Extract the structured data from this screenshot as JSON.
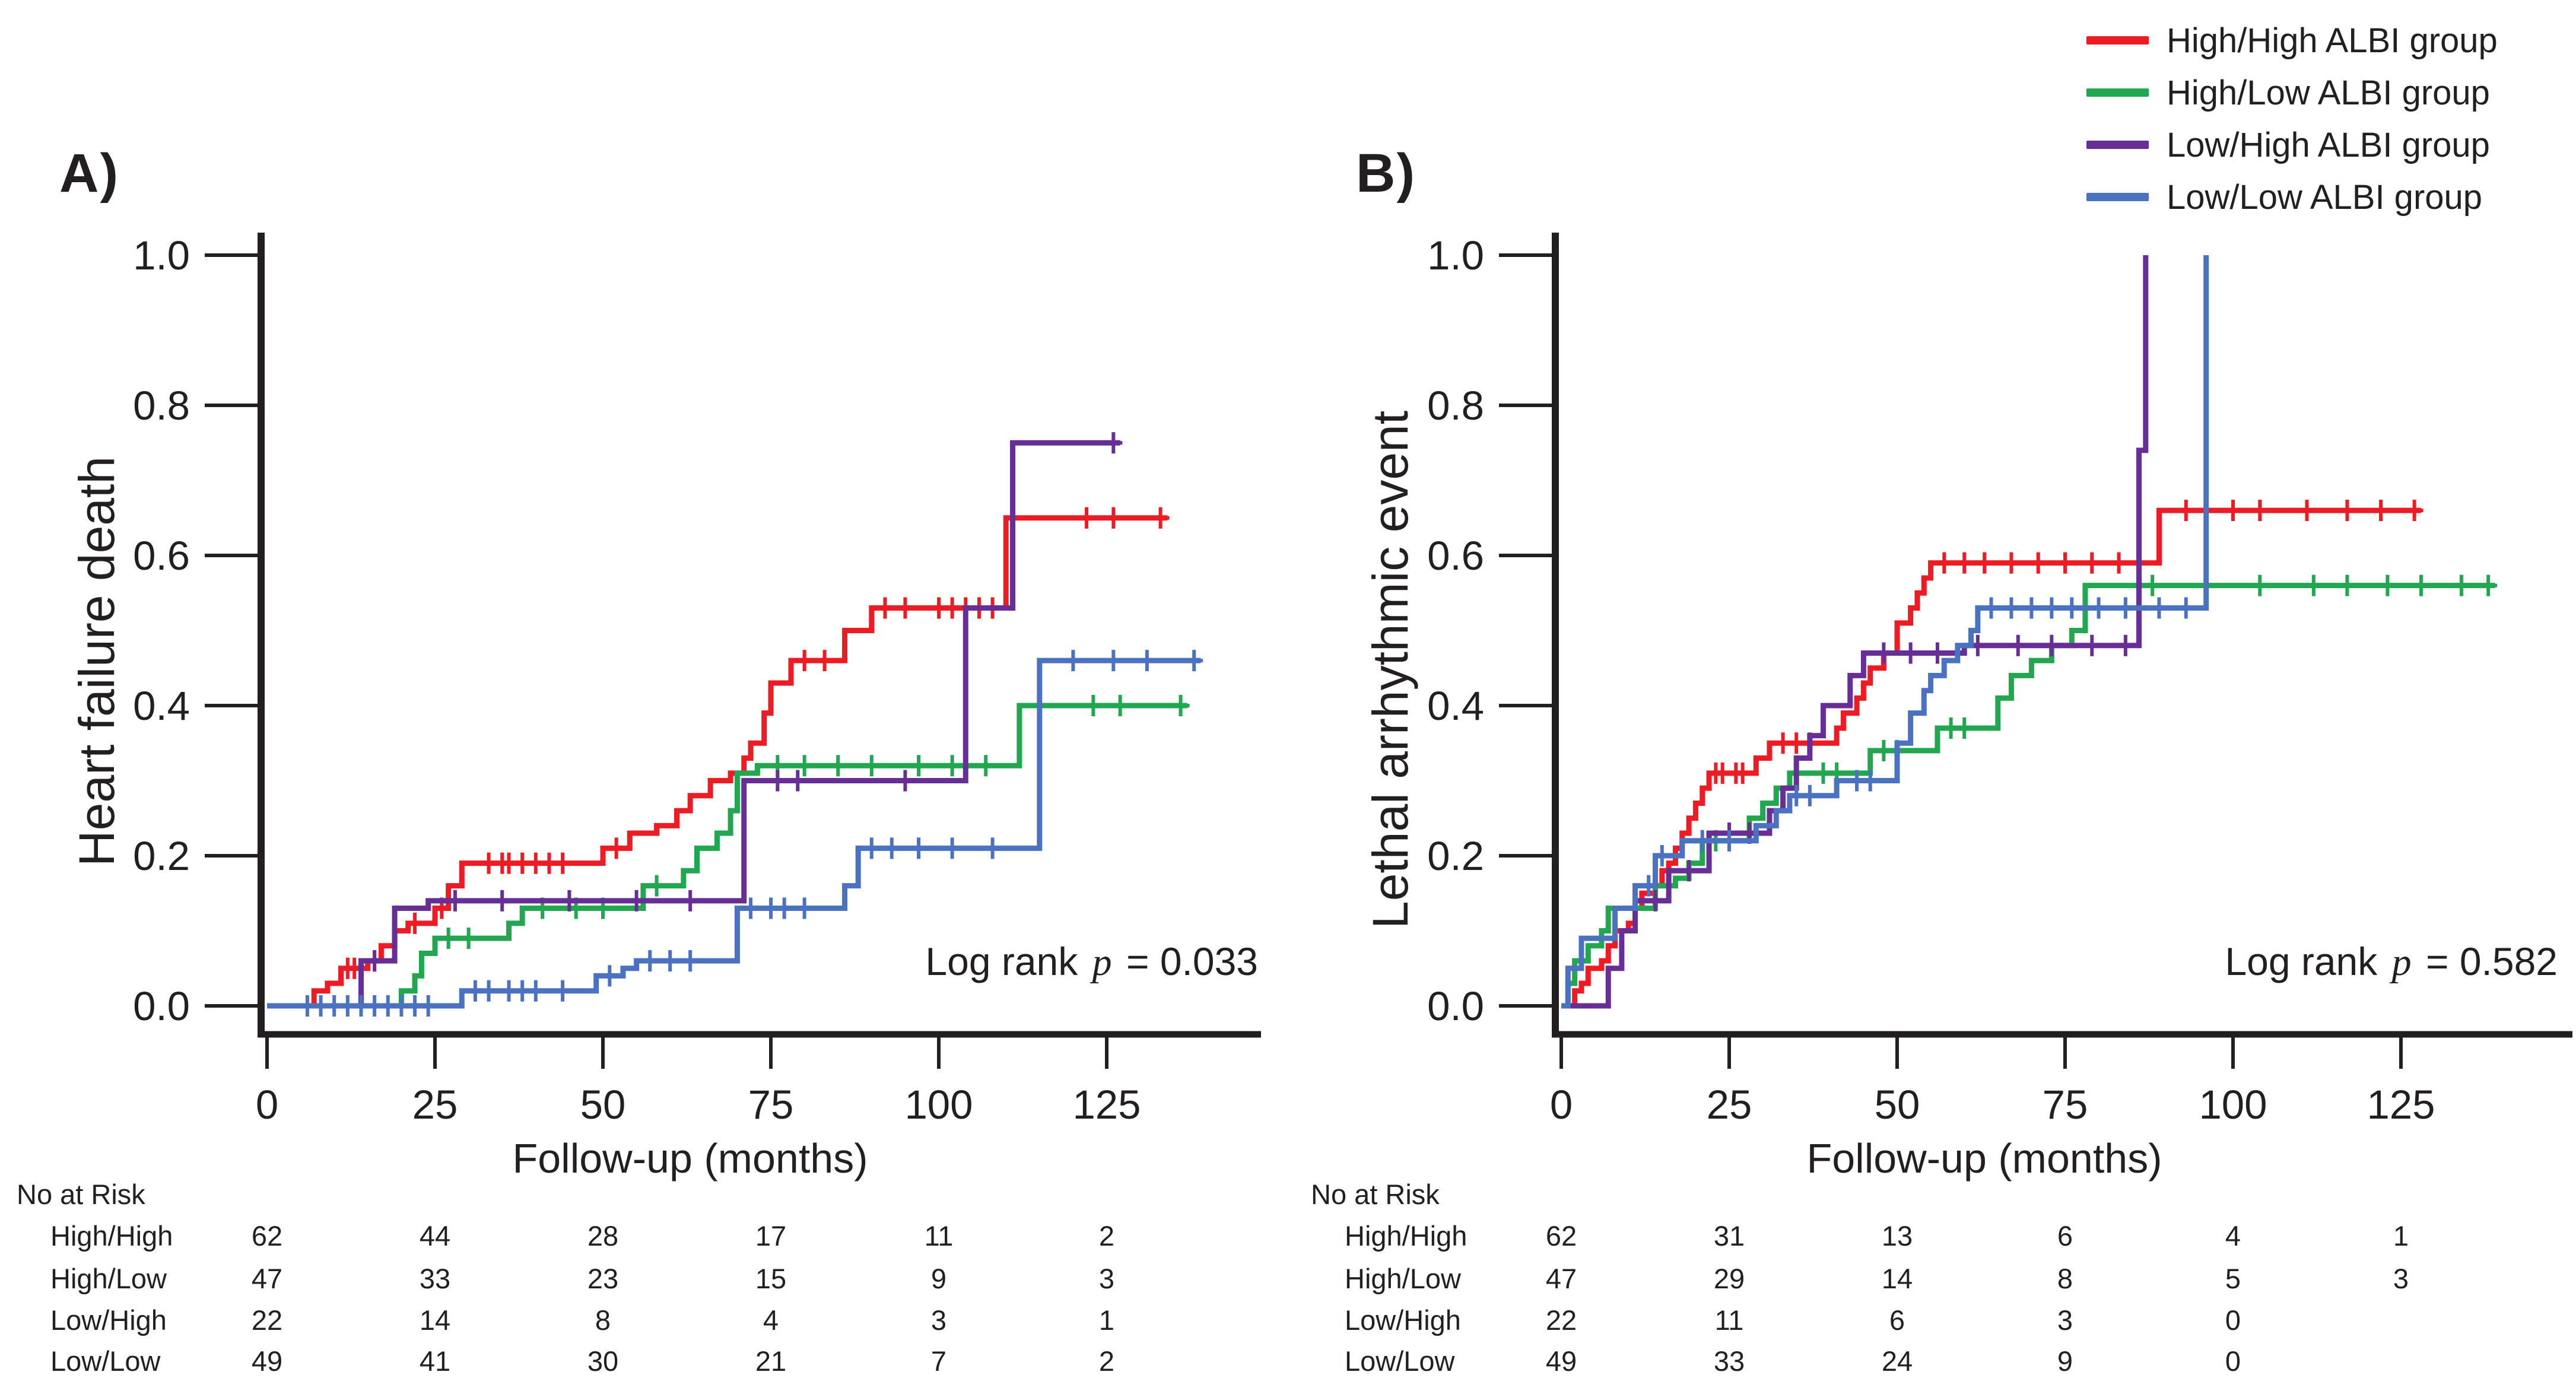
{
  "figure": {
    "legend": {
      "items": [
        {
          "label": "High/High ALBI group",
          "color": "#ed1c24"
        },
        {
          "label": "High/Low ALBI group",
          "color": "#22a650"
        },
        {
          "label": "Low/High ALBI group",
          "color": "#672f96"
        },
        {
          "label": "Low/Low ALBI group",
          "color": "#4a72c0"
        }
      ]
    },
    "text_color": "#231f20"
  },
  "chart_data": [
    {
      "id": "A",
      "type": "line",
      "subtype": "kaplan-meier-cumulative-incidence",
      "panel_label": "A)",
      "ylabel": "Heart failure death",
      "xlabel": "Follow-up (months)",
      "xlim": [
        0,
        148
      ],
      "ylim": [
        0,
        1.0
      ],
      "x_ticks": [
        0,
        25,
        50,
        75,
        100,
        125
      ],
      "y_ticks": [
        "0.0",
        "0.2",
        "0.4",
        "0.6",
        "0.8",
        "1.0"
      ],
      "grid": false,
      "legend_position": "top-right-shared",
      "annotation": {
        "prefix": "Log rank",
        "p": "p",
        "value": "= 0.033"
      },
      "series": [
        {
          "name": "High/High ALBI group",
          "color": "#ed1c24",
          "points": [
            [
              0,
              0
            ],
            [
              7,
              0.02
            ],
            [
              9,
              0.03
            ],
            [
              11,
              0.05
            ],
            [
              15,
              0.06
            ],
            [
              17,
              0.08
            ],
            [
              19,
              0.1
            ],
            [
              21,
              0.11
            ],
            [
              25,
              0.13
            ],
            [
              27,
              0.16
            ],
            [
              29,
              0.19
            ],
            [
              49,
              0.19
            ],
            [
              50,
              0.21
            ],
            [
              54,
              0.23
            ],
            [
              58,
              0.24
            ],
            [
              61,
              0.26
            ],
            [
              63,
              0.28
            ],
            [
              66,
              0.3
            ],
            [
              69,
              0.31
            ],
            [
              71,
              0.33
            ],
            [
              72,
              0.35
            ],
            [
              74,
              0.39
            ],
            [
              75,
              0.43
            ],
            [
              78,
              0.46
            ],
            [
              86,
              0.5
            ],
            [
              90,
              0.53
            ],
            [
              110,
              0.53
            ],
            [
              110,
              0.65
            ],
            [
              134,
              0.65
            ]
          ],
          "censors": [
            12,
            13,
            16,
            22,
            26,
            33,
            35,
            36,
            38,
            40,
            42,
            44,
            52,
            80,
            83,
            92,
            95,
            100,
            102,
            104,
            106,
            108,
            122,
            126,
            133
          ]
        },
        {
          "name": "High/Low ALBI group",
          "color": "#22a650",
          "points": [
            [
              0,
              0
            ],
            [
              20,
              0.02
            ],
            [
              22,
              0.04
            ],
            [
              23,
              0.07
            ],
            [
              25,
              0.09
            ],
            [
              35,
              0.09
            ],
            [
              36,
              0.11
            ],
            [
              38,
              0.13
            ],
            [
              54,
              0.13
            ],
            [
              56,
              0.16
            ],
            [
              62,
              0.18
            ],
            [
              64,
              0.21
            ],
            [
              67,
              0.23
            ],
            [
              69,
              0.26
            ],
            [
              70,
              0.31
            ],
            [
              73,
              0.32
            ],
            [
              112,
              0.32
            ],
            [
              112,
              0.4
            ],
            [
              137,
              0.4
            ]
          ],
          "censors": [
            27,
            30,
            41,
            46,
            50,
            58,
            76,
            80,
            85,
            90,
            97,
            102,
            107,
            115,
            123,
            127,
            136
          ]
        },
        {
          "name": "Low/High ALBI group",
          "color": "#672f96",
          "points": [
            [
              0,
              0
            ],
            [
              14,
              0.06
            ],
            [
              19,
              0.13
            ],
            [
              24,
              0.14
            ],
            [
              70,
              0.14
            ],
            [
              71,
              0.3
            ],
            [
              104,
              0.3
            ],
            [
              104,
              0.53
            ],
            [
              111,
              0.53
            ],
            [
              111,
              0.75
            ],
            [
              127,
              0.75
            ]
          ],
          "censors": [
            16,
            28,
            35,
            45,
            55,
            63,
            76,
            79,
            95,
            126
          ]
        },
        {
          "name": "Low/Low ALBI group",
          "color": "#4a72c0",
          "points": [
            [
              0,
              0
            ],
            [
              29,
              0.02
            ],
            [
              48,
              0.02
            ],
            [
              49,
              0.04
            ],
            [
              53,
              0.05
            ],
            [
              55,
              0.06
            ],
            [
              69,
              0.06
            ],
            [
              70,
              0.13
            ],
            [
              85,
              0.13
            ],
            [
              86,
              0.16
            ],
            [
              88,
              0.21
            ],
            [
              115,
              0.21
            ],
            [
              115,
              0.46
            ],
            [
              139,
              0.46
            ]
          ],
          "censors": [
            6,
            8,
            10,
            12,
            14,
            16,
            18,
            20,
            22,
            24,
            31,
            33,
            36,
            38,
            40,
            44,
            51,
            57,
            60,
            63,
            72,
            75,
            77,
            80,
            90,
            93,
            97,
            102,
            108,
            120,
            126,
            131,
            138
          ]
        }
      ],
      "risk_table": {
        "title": "No at Risk",
        "rows": [
          {
            "label": "High/High",
            "counts": [
              62,
              44,
              28,
              17,
              11,
              2
            ]
          },
          {
            "label": "High/Low",
            "counts": [
              47,
              33,
              23,
              15,
              9,
              3
            ]
          },
          {
            "label": "Low/High",
            "counts": [
              22,
              14,
              8,
              4,
              3,
              1
            ]
          },
          {
            "label": "Low/Low",
            "counts": [
              49,
              41,
              30,
              21,
              7,
              2
            ]
          }
        ]
      }
    },
    {
      "id": "B",
      "type": "line",
      "subtype": "kaplan-meier-cumulative-incidence",
      "panel_label": "B)",
      "ylabel": "Lethal arrhythmic event",
      "xlabel": "Follow-up (months)",
      "xlim": [
        0,
        148
      ],
      "ylim": [
        0,
        1.0
      ],
      "x_ticks": [
        0,
        25,
        50,
        75,
        100,
        125
      ],
      "y_ticks": [
        "0.0",
        "0.2",
        "0.4",
        "0.6",
        "0.8",
        "1.0"
      ],
      "grid": false,
      "legend_position": "top-right-shared",
      "annotation": {
        "prefix": "Log rank",
        "p": "p",
        "value": "= 0.582"
      },
      "series": [
        {
          "name": "High/High ALBI group",
          "color": "#ed1c24",
          "points": [
            [
              0,
              0
            ],
            [
              2,
              0.02
            ],
            [
              3,
              0.03
            ],
            [
              4,
              0.05
            ],
            [
              6,
              0.06
            ],
            [
              7,
              0.08
            ],
            [
              8,
              0.1
            ],
            [
              10,
              0.11
            ],
            [
              11,
              0.13
            ],
            [
              12,
              0.15
            ],
            [
              14,
              0.16
            ],
            [
              15,
              0.18
            ],
            [
              16,
              0.19
            ],
            [
              17,
              0.21
            ],
            [
              18,
              0.23
            ],
            [
              19,
              0.25
            ],
            [
              20,
              0.27
            ],
            [
              21,
              0.29
            ],
            [
              22,
              0.31
            ],
            [
              28,
              0.31
            ],
            [
              29,
              0.33
            ],
            [
              31,
              0.35
            ],
            [
              40,
              0.35
            ],
            [
              41,
              0.37
            ],
            [
              42,
              0.39
            ],
            [
              44,
              0.41
            ],
            [
              45,
              0.43
            ],
            [
              46,
              0.45
            ],
            [
              48,
              0.47
            ],
            [
              50,
              0.51
            ],
            [
              52,
              0.53
            ],
            [
              53,
              0.55
            ],
            [
              54,
              0.57
            ],
            [
              55,
              0.59
            ],
            [
              88,
              0.59
            ],
            [
              89,
              0.66
            ],
            [
              128,
              0.66
            ]
          ],
          "censors": [
            23,
            24,
            26,
            27,
            33,
            35,
            37,
            57,
            60,
            63,
            67,
            71,
            75,
            79,
            83,
            86,
            93,
            100,
            104,
            111,
            117,
            122,
            127
          ]
        },
        {
          "name": "High/Low ALBI group",
          "color": "#22a650",
          "points": [
            [
              0,
              0
            ],
            [
              1,
              0.03
            ],
            [
              2,
              0.06
            ],
            [
              4,
              0.08
            ],
            [
              6,
              0.1
            ],
            [
              7,
              0.13
            ],
            [
              13,
              0.13
            ],
            [
              14,
              0.16
            ],
            [
              17,
              0.17
            ],
            [
              19,
              0.19
            ],
            [
              21,
              0.22
            ],
            [
              27,
              0.22
            ],
            [
              28,
              0.25
            ],
            [
              30,
              0.27
            ],
            [
              32,
              0.29
            ],
            [
              34,
              0.31
            ],
            [
              44,
              0.31
            ],
            [
              46,
              0.34
            ],
            [
              54,
              0.34
            ],
            [
              56,
              0.37
            ],
            [
              63,
              0.37
            ],
            [
              65,
              0.41
            ],
            [
              67,
              0.44
            ],
            [
              70,
              0.46
            ],
            [
              73,
              0.48
            ],
            [
              76,
              0.5
            ],
            [
              78,
              0.56
            ],
            [
              139,
              0.56
            ]
          ],
          "censors": [
            23,
            25,
            39,
            41,
            48,
            50,
            58,
            60,
            88,
            96,
            104,
            112,
            117,
            123,
            128,
            134,
            138
          ]
        },
        {
          "name": "Low/High ALBI group",
          "color": "#672f96",
          "points": [
            [
              0,
              0
            ],
            [
              7,
              0.05
            ],
            [
              9,
              0.1
            ],
            [
              11,
              0.14
            ],
            [
              16,
              0.18
            ],
            [
              22,
              0.23
            ],
            [
              31,
              0.26
            ],
            [
              33,
              0.29
            ],
            [
              35,
              0.33
            ],
            [
              37,
              0.36
            ],
            [
              39,
              0.4
            ],
            [
              42,
              0.4
            ],
            [
              43,
              0.44
            ],
            [
              45,
              0.47
            ],
            [
              60,
              0.48
            ],
            [
              85,
              0.48
            ],
            [
              86,
              0.74
            ],
            [
              87,
              1.0
            ]
          ],
          "censors": [
            14,
            19,
            25,
            28,
            48,
            52,
            56,
            62,
            68,
            73,
            79,
            84
          ]
        },
        {
          "name": "Low/Low ALBI group",
          "color": "#4a72c0",
          "points": [
            [
              0,
              0
            ],
            [
              1,
              0.05
            ],
            [
              3,
              0.09
            ],
            [
              8,
              0.13
            ],
            [
              11,
              0.16
            ],
            [
              14,
              0.2
            ],
            [
              18,
              0.22
            ],
            [
              29,
              0.24
            ],
            [
              32,
              0.26
            ],
            [
              34,
              0.28
            ],
            [
              40,
              0.28
            ],
            [
              41,
              0.3
            ],
            [
              48,
              0.3
            ],
            [
              50,
              0.35
            ],
            [
              52,
              0.39
            ],
            [
              54,
              0.42
            ],
            [
              55,
              0.44
            ],
            [
              57,
              0.46
            ],
            [
              59,
              0.48
            ],
            [
              61,
              0.5
            ],
            [
              62,
              0.53
            ],
            [
              96,
              0.53
            ],
            [
              96,
              1.0
            ]
          ],
          "censors": [
            13,
            15,
            21,
            25,
            35,
            37,
            44,
            46,
            64,
            67,
            70,
            73,
            76,
            80,
            84,
            89,
            93
          ]
        }
      ],
      "risk_table": {
        "title": "No at Risk",
        "rows": [
          {
            "label": "High/High",
            "counts": [
              62,
              31,
              13,
              6,
              4,
              1
            ]
          },
          {
            "label": "High/Low",
            "counts": [
              47,
              29,
              14,
              8,
              5,
              3
            ]
          },
          {
            "label": "Low/High",
            "counts": [
              22,
              11,
              6,
              3,
              0
            ]
          },
          {
            "label": "Low/Low",
            "counts": [
              49,
              33,
              24,
              9,
              0
            ]
          }
        ]
      }
    }
  ]
}
